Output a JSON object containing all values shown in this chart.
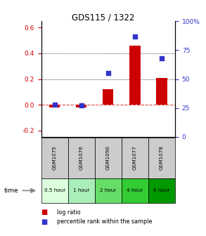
{
  "title": "GDS115 / 1322",
  "samples": [
    "GSM1075",
    "GSM1076",
    "GSM1090",
    "GSM1077",
    "GSM1078"
  ],
  "time_labels": [
    "0.5 hour",
    "1 hour",
    "2 hour",
    "4 hour",
    "6 hour"
  ],
  "log_ratio": [
    -0.02,
    -0.02,
    0.12,
    0.46,
    0.21
  ],
  "percentile": [
    28,
    27,
    55,
    87,
    68
  ],
  "bar_color": "#cc0000",
  "dot_color": "#3333cc",
  "ylim_left": [
    -0.25,
    0.65
  ],
  "ylim_right": [
    0,
    100
  ],
  "yticks_left": [
    -0.2,
    0.0,
    0.2,
    0.4,
    0.6
  ],
  "yticks_right": [
    0,
    25,
    50,
    75,
    100
  ],
  "hlines": [
    0.2,
    0.4
  ],
  "time_colors": [
    "#ddffdd",
    "#aaeebb",
    "#66dd66",
    "#33cc33",
    "#009900"
  ],
  "gsm_bg": "#cccccc",
  "legend_log": "log ratio",
  "legend_pct": "percentile rank within the sample",
  "figsize": [
    2.93,
    3.36
  ],
  "dpi": 100
}
